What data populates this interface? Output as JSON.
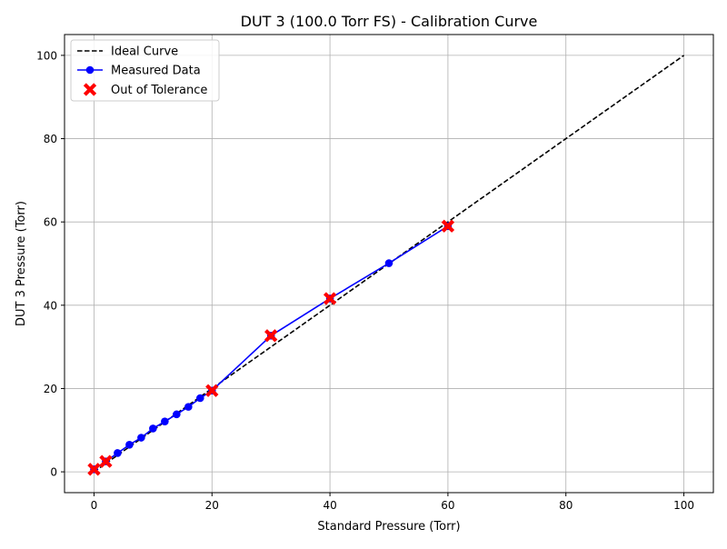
{
  "chart_data": {
    "type": "line",
    "title": "DUT 3 (100.0 Torr FS) - Calibration Curve",
    "xlabel": "Standard Pressure (Torr)",
    "ylabel": "DUT 3 Pressure (Torr)",
    "xlim": [
      -5,
      105
    ],
    "ylim": [
      -5,
      105
    ],
    "xticks": [
      0,
      20,
      40,
      60,
      80,
      100
    ],
    "yticks": [
      0,
      20,
      40,
      60,
      80,
      100
    ],
    "grid": true,
    "legend_position": "top-left",
    "series": [
      {
        "name": "Ideal Curve",
        "style": "dashed",
        "color": "#000000",
        "x": [
          0,
          100
        ],
        "y": [
          0,
          100
        ]
      },
      {
        "name": "Measured Data",
        "style": "solid-markers",
        "color": "#0000ff",
        "x": [
          0,
          2,
          4,
          6,
          8,
          10,
          12,
          14,
          16,
          18,
          20,
          30,
          40,
          50,
          60
        ],
        "y": [
          0.6,
          2.5,
          4.5,
          6.5,
          8.2,
          10.4,
          12.1,
          13.8,
          15.6,
          17.7,
          19.5,
          32.7,
          41.6,
          50.1,
          59.0
        ]
      },
      {
        "name": "Out of Tolerance",
        "style": "x-markers",
        "color": "#ff0000",
        "x": [
          0,
          2,
          20,
          30,
          40,
          60
        ],
        "y": [
          0.6,
          2.5,
          19.5,
          32.7,
          41.6,
          59.0
        ]
      }
    ]
  }
}
